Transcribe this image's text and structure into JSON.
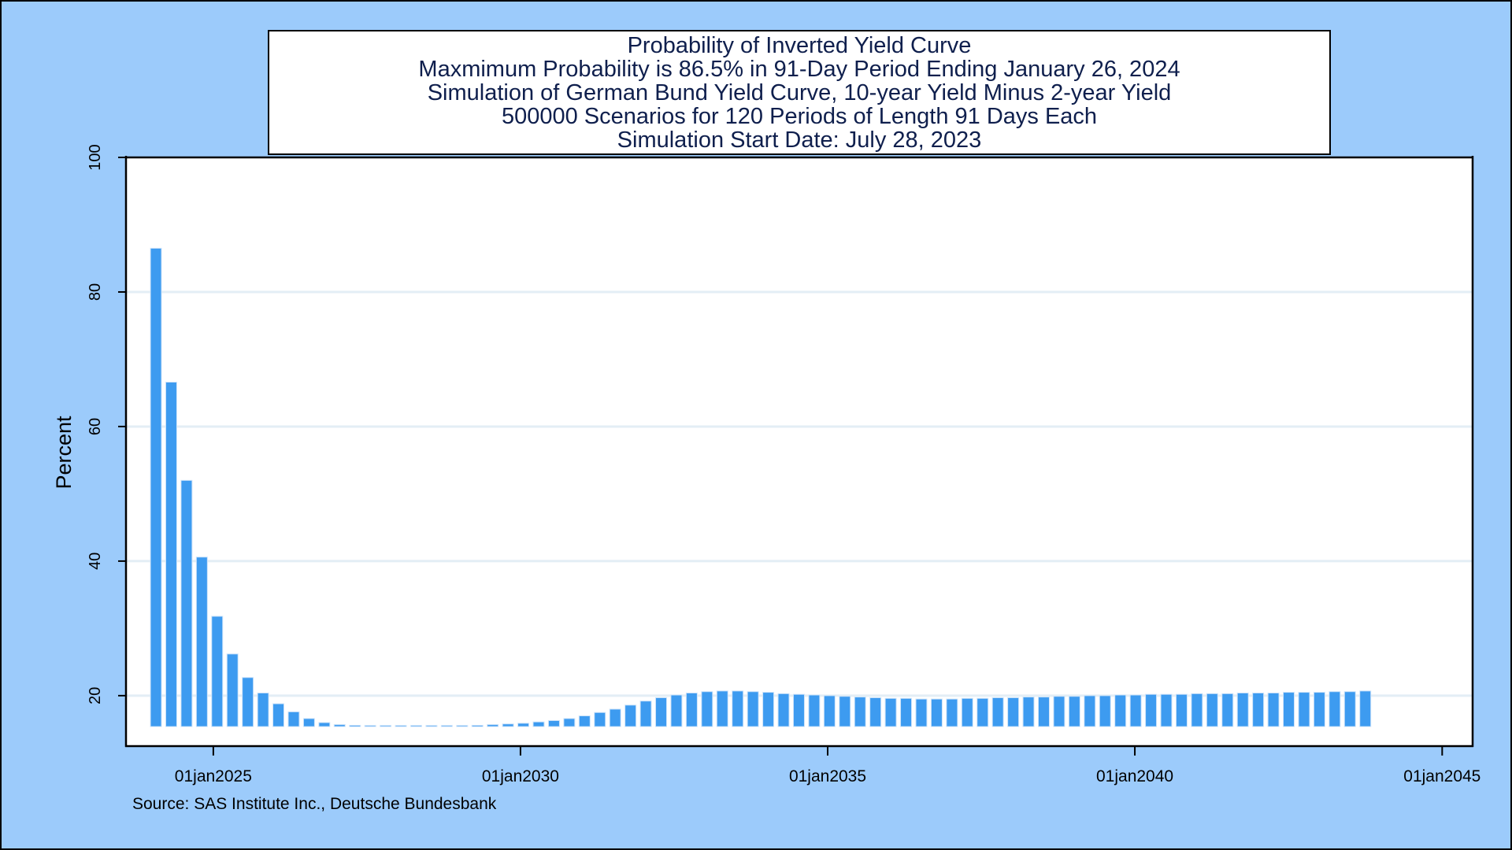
{
  "chart_data": {
    "type": "bar",
    "title_lines": [
      "Probability of Inverted Yield Curve",
      "Maxmimum Probability is 86.5% in 91-Day Period Ending January 26, 2024",
      "Simulation of German Bund Yield Curve, 10-year Yield Minus 2-year Yield",
      "500000 Scenarios for 120 Periods of Length 91 Days Each",
      "Simulation Start Date: July 28, 2023"
    ],
    "ylabel": "Percent",
    "xlabel": "",
    "ylim": [
      12.5,
      100
    ],
    "yticks": [
      20,
      40,
      60,
      80,
      100
    ],
    "xlim": [
      "2023-08-01",
      "2045-07-01"
    ],
    "xticks": [
      "01jan2025",
      "01jan2030",
      "01jan2035",
      "01jan2040",
      "01jan2045"
    ],
    "grid": true,
    "bar_color": "#3d9bf0",
    "x": [
      "2024-01-26",
      "2024-04-26",
      "2024-07-26",
      "2024-10-25",
      "2025-01-24",
      "2025-04-25",
      "2025-07-25",
      "2025-10-24",
      "2026-01-23",
      "2026-04-24",
      "2026-07-24",
      "2026-10-23",
      "2027-01-22",
      "2027-04-23",
      "2027-07-23",
      "2027-10-22",
      "2028-01-21",
      "2028-04-21",
      "2028-07-21",
      "2028-10-20",
      "2029-01-19",
      "2029-04-20",
      "2029-07-20",
      "2029-10-19",
      "2030-01-18",
      "2030-04-19",
      "2030-07-19",
      "2030-10-18",
      "2031-01-17",
      "2031-04-18",
      "2031-07-18",
      "2031-10-17",
      "2032-01-16",
      "2032-04-16",
      "2032-07-16",
      "2032-10-15",
      "2033-01-14",
      "2033-04-15",
      "2033-07-15",
      "2033-10-14",
      "2034-01-13",
      "2034-04-14",
      "2034-07-14",
      "2034-10-13",
      "2035-01-12",
      "2035-04-13",
      "2035-07-13",
      "2035-10-12",
      "2036-01-11",
      "2036-04-11",
      "2036-07-11",
      "2036-10-10",
      "2037-01-09",
      "2037-04-10",
      "2037-07-10",
      "2037-10-09",
      "2038-01-08",
      "2038-04-09",
      "2038-07-09",
      "2038-10-08",
      "2039-01-07",
      "2039-04-08",
      "2039-07-08",
      "2039-10-07",
      "2040-01-06",
      "2040-04-06",
      "2040-07-06",
      "2040-10-05",
      "2041-01-04",
      "2041-04-05",
      "2041-07-05",
      "2041-10-04",
      "2042-01-03",
      "2042-04-04",
      "2042-07-04",
      "2042-10-03",
      "2043-01-02",
      "2043-04-03",
      "2043-07-03",
      "2043-10-02"
    ],
    "values": [
      86.5,
      66.6,
      52.0,
      40.6,
      31.8,
      26.2,
      22.7,
      20.4,
      18.8,
      17.6,
      16.6,
      16.0,
      15.7,
      15.6,
      15.5,
      15.4,
      15.3,
      15.3,
      15.3,
      15.4,
      15.5,
      15.6,
      15.7,
      15.8,
      15.9,
      16.1,
      16.3,
      16.6,
      17.0,
      17.5,
      18.0,
      18.6,
      19.2,
      19.7,
      20.1,
      20.4,
      20.6,
      20.7,
      20.7,
      20.6,
      20.5,
      20.3,
      20.2,
      20.1,
      20.0,
      19.9,
      19.8,
      19.7,
      19.6,
      19.6,
      19.5,
      19.5,
      19.5,
      19.6,
      19.6,
      19.7,
      19.7,
      19.8,
      19.8,
      19.9,
      19.9,
      20.0,
      20.0,
      20.1,
      20.1,
      20.2,
      20.2,
      20.2,
      20.3,
      20.3,
      20.3,
      20.4,
      20.4,
      20.4,
      20.5,
      20.5,
      20.5,
      20.6,
      20.6,
      20.7
    ]
  },
  "source": "Source: SAS Institute Inc., Deutsche Bundesbank"
}
